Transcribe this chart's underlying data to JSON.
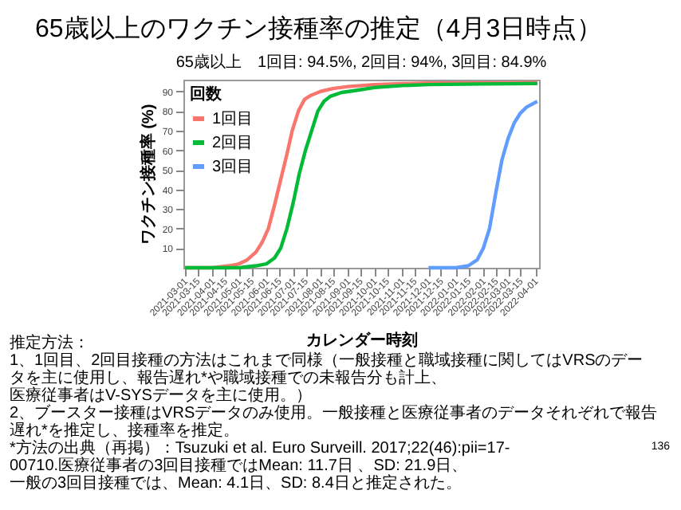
{
  "chart_data": {
    "type": "line",
    "title": "65歳以上のワクチン接種率の推定（4月3日時点）",
    "subtitle": "65歳以上　1回目: 94.5%, 2回目: 94%, 3回目: 84.9%",
    "xlabel": "カレンダー時刻",
    "ylabel": "ワクチン接種率 (%)",
    "legend_title": "回数",
    "legend": "top left",
    "grid": false,
    "line_style": "solid",
    "marker": "none",
    "xlim": [
      "2021-02-27",
      "2022-04-05"
    ],
    "ylim": [
      0,
      96
    ],
    "yticks": [
      10,
      20,
      30,
      40,
      50,
      60,
      70,
      80,
      90
    ],
    "xticks": [
      "2021-03-01",
      "2021-03-15",
      "2021-04-01",
      "2021-04-15",
      "2021-05-01",
      "2021-05-15",
      "2021-06-01",
      "2021-06-15",
      "2021-07-01",
      "2021-07-15",
      "2021-08-01",
      "2021-08-15",
      "2021-09-01",
      "2021-09-15",
      "2021-10-01",
      "2021-10-15",
      "2021-11-01",
      "2021-11-15",
      "2021-12-01",
      "2021-12-15",
      "2022-01-01",
      "2022-01-15",
      "2022-02-01",
      "2022-02-15",
      "2022-03-01",
      "2022-03-15",
      "2022-04-01"
    ],
    "series": [
      {
        "name": "1回目",
        "color": "#f8766d",
        "x": [
          "2021-03-01",
          "2021-04-01",
          "2021-04-20",
          "2021-05-01",
          "2021-05-10",
          "2021-05-20",
          "2021-05-27",
          "2021-06-03",
          "2021-06-10",
          "2021-06-17",
          "2021-06-24",
          "2021-06-30",
          "2021-07-07",
          "2021-07-14",
          "2021-07-21",
          "2021-08-01",
          "2021-08-15",
          "2021-09-01",
          "2021-10-01",
          "2021-11-01",
          "2021-12-01",
          "2022-02-01",
          "2022-04-03"
        ],
        "values": [
          0,
          0,
          1,
          2,
          4,
          8,
          13,
          20,
          32,
          45,
          58,
          70,
          80,
          86,
          88,
          90,
          91.5,
          92.5,
          93.5,
          94,
          94.3,
          94.4,
          94.5
        ]
      },
      {
        "name": "2回目",
        "color": "#00ba38",
        "x": [
          "2021-03-01",
          "2021-05-01",
          "2021-05-20",
          "2021-06-01",
          "2021-06-10",
          "2021-06-17",
          "2021-06-24",
          "2021-07-01",
          "2021-07-08",
          "2021-07-15",
          "2021-07-22",
          "2021-07-29",
          "2021-08-05",
          "2021-08-12",
          "2021-08-25",
          "2021-09-10",
          "2021-10-01",
          "2021-11-01",
          "2021-12-01",
          "2022-02-01",
          "2022-04-03"
        ],
        "values": [
          0,
          0,
          1,
          2,
          5,
          10,
          20,
          33,
          48,
          60,
          70,
          80,
          85,
          87.5,
          89.5,
          90.5,
          92,
          93,
          93.5,
          93.8,
          94
        ]
      },
      {
        "name": "3回目",
        "color": "#619cff",
        "x": [
          "2021-12-01",
          "2022-01-01",
          "2022-01-15",
          "2022-01-25",
          "2022-02-01",
          "2022-02-08",
          "2022-02-15",
          "2022-02-22",
          "2022-03-01",
          "2022-03-08",
          "2022-03-15",
          "2022-03-22",
          "2022-04-03"
        ],
        "values": [
          0,
          0,
          1,
          4,
          10,
          20,
          38,
          55,
          66,
          74,
          79,
          82,
          84.9
        ]
      }
    ],
    "annotations": [
      "推定方法：",
      "1、1回目、2回目接種の方法はこれまで同様（一般接種と職域接種に関してはVRSのデータを主に使用し、報告遅れ*や職域接種での未報告分も計上、医療従事者はV-SYSデータを主に使用。）",
      "2、ブースター接種はVRSデータのみ使用。一般接種と医療従事者のデータそれぞれで報告遅れ*を推定し、接種率を推定。",
      "136",
      "*方法の出典（再掲）：Tsuzuki et al. Euro Surveill. 2017;22(46):pii=17-00710.医療従事者の3回目接種ではMean: 11.7日 、SD: 21.9日、一般の3回目接種では、Mean: 4.1日、SD: 8.4日と推定された。"
    ]
  }
}
